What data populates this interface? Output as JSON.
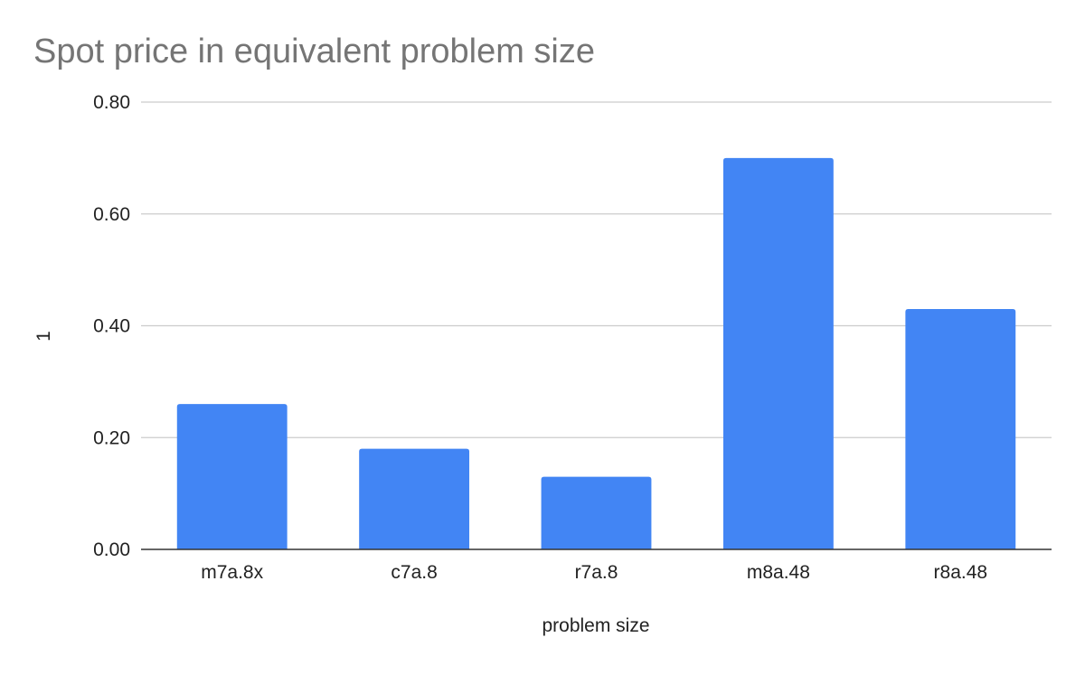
{
  "chart_data": {
    "type": "bar",
    "title": "Spot price in equivalent problem size",
    "xlabel": "problem size",
    "ylabel": "1",
    "categories": [
      "m7a.8x",
      "c7a.8",
      "r7a.8",
      "m8a.48",
      "r8a.48"
    ],
    "values": [
      0.26,
      0.18,
      0.13,
      0.7,
      0.43
    ],
    "ylim": [
      0,
      0.8
    ],
    "yticks": [
      "0.00",
      "0.20",
      "0.40",
      "0.60",
      "0.80"
    ],
    "grid": true,
    "legend": "none",
    "colors": {
      "bar": "#4285f4",
      "grid": "#cccccc",
      "axis": "#333333",
      "title": "#757575"
    }
  }
}
